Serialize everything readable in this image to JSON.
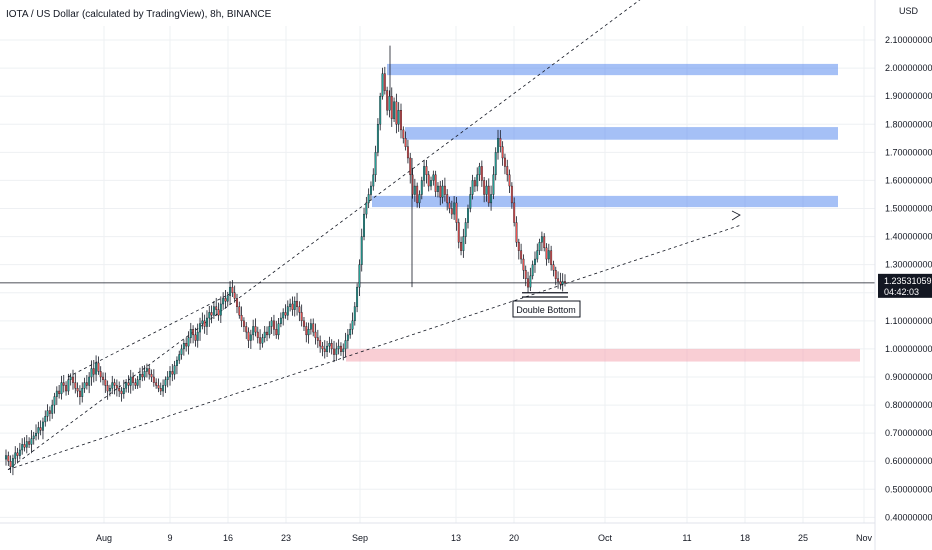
{
  "chart_data": {
    "type": "candlestick",
    "title": "IOTA / US Dollar (calculated by TradingView), 8h, BINANCE",
    "currency": "USD",
    "y_axis": {
      "ticks": [
        "2.10000000",
        "2.00000000",
        "1.90000000",
        "1.80000000",
        "1.70000000",
        "1.60000000",
        "1.50000000",
        "1.40000000",
        "1.30000000",
        "1.20000000",
        "1.10000000",
        "1.00000000",
        "0.90000000",
        "0.80000000",
        "0.70000000",
        "0.60000000",
        "0.50000000",
        "0.40000000"
      ],
      "range": [
        0.38,
        2.15
      ]
    },
    "x_axis": {
      "ticks": [
        "Aug",
        "9",
        "16",
        "23",
        "Sep",
        "13",
        "20",
        "Oct",
        "11",
        "18",
        "25",
        "Nov"
      ]
    },
    "current_price": "1.23531059",
    "countdown": "04:42:03",
    "zones": [
      {
        "name": "resistance-zone-2.0",
        "y_low": 1.975,
        "y_high": 2.015,
        "color": "#5b8def"
      },
      {
        "name": "resistance-zone-1.77",
        "y_low": 1.745,
        "y_high": 1.79,
        "color": "#5b8def"
      },
      {
        "name": "resistance-zone-1.53",
        "y_low": 1.505,
        "y_high": 1.545,
        "color": "#5b8def"
      },
      {
        "name": "support-zone-0.98",
        "y_low": 0.955,
        "y_high": 1.0,
        "color": "#f4a6b0"
      }
    ],
    "annotation": "Double Bottom",
    "colors": {
      "up": "#26a69a",
      "down": "#ef5350",
      "wick": "#131722",
      "zone_blue": "#5b8def",
      "zone_red": "#f4a6b0",
      "price_label_bg": "#131722"
    },
    "candles_note": "8h candles; closes approximated from chart",
    "closes": [
      0.62,
      0.6,
      0.58,
      0.61,
      0.63,
      0.62,
      0.64,
      0.66,
      0.65,
      0.67,
      0.66,
      0.68,
      0.69,
      0.7,
      0.72,
      0.71,
      0.74,
      0.76,
      0.78,
      0.77,
      0.8,
      0.83,
      0.85,
      0.84,
      0.88,
      0.87,
      0.85,
      0.89,
      0.9,
      0.88,
      0.86,
      0.85,
      0.83,
      0.86,
      0.88,
      0.87,
      0.9,
      0.93,
      0.91,
      0.95,
      0.92,
      0.9,
      0.89,
      0.87,
      0.85,
      0.86,
      0.88,
      0.87,
      0.86,
      0.85,
      0.84,
      0.86,
      0.88,
      0.87,
      0.9,
      0.88,
      0.87,
      0.89,
      0.91,
      0.9,
      0.92,
      0.93,
      0.91,
      0.9,
      0.88,
      0.87,
      0.86,
      0.85,
      0.87,
      0.89,
      0.9,
      0.92,
      0.91,
      0.94,
      0.96,
      0.98,
      1.0,
      1.02,
      1.01,
      1.04,
      1.07,
      1.05,
      1.03,
      1.06,
      1.09,
      1.1,
      1.08,
      1.11,
      1.13,
      1.12,
      1.15,
      1.14,
      1.12,
      1.16,
      1.18,
      1.17,
      1.19,
      1.22,
      1.2,
      1.18,
      1.15,
      1.12,
      1.1,
      1.08,
      1.06,
      1.03,
      1.05,
      1.08,
      1.06,
      1.04,
      1.02,
      1.04,
      1.06,
      1.05,
      1.08,
      1.1,
      1.07,
      1.05,
      1.09,
      1.11,
      1.13,
      1.12,
      1.15,
      1.16,
      1.14,
      1.17,
      1.15,
      1.13,
      1.1,
      1.08,
      1.05,
      1.07,
      1.09,
      1.06,
      1.04,
      1.03,
      1.01,
      1.0,
      0.99,
      1.01,
      1.02,
      1.0,
      0.98,
      1.0,
      1.01,
      0.99,
      1.0,
      1.03,
      1.05,
      1.07,
      1.1,
      1.15,
      1.22,
      1.3,
      1.4,
      1.48,
      1.52,
      1.55,
      1.58,
      1.62,
      1.7,
      1.8,
      1.9,
      1.98,
      1.92,
      1.85,
      1.9,
      1.82,
      1.88,
      1.8,
      1.85,
      1.78,
      1.75,
      1.72,
      1.68,
      1.62,
      1.55,
      1.58,
      1.52,
      1.55,
      1.6,
      1.65,
      1.62,
      1.58,
      1.6,
      1.62,
      1.56,
      1.58,
      1.54,
      1.58,
      1.55,
      1.52,
      1.5,
      1.48,
      1.52,
      1.45,
      1.38,
      1.35,
      1.4,
      1.45,
      1.5,
      1.55,
      1.6,
      1.58,
      1.62,
      1.65,
      1.6,
      1.55,
      1.58,
      1.52,
      1.55,
      1.62,
      1.7,
      1.75,
      1.72,
      1.68,
      1.65,
      1.62,
      1.58,
      1.52,
      1.45,
      1.38,
      1.35,
      1.32,
      1.28,
      1.25,
      1.22,
      1.26,
      1.3,
      1.32,
      1.35,
      1.38,
      1.4,
      1.36,
      1.32,
      1.35,
      1.3,
      1.28,
      1.25,
      1.24,
      1.23,
      1.24,
      1.235
    ]
  },
  "trend_lines": [
    {
      "name": "upper-channel-line",
      "from": {
        "date_index": 0,
        "price": 0.58
      },
      "to": {
        "date_index": 200,
        "price": 2.3
      }
    },
    {
      "name": "lower-channel-line",
      "from": {
        "date_index": 0,
        "price": 0.58
      },
      "to": {
        "date_index": 280,
        "price": 1.45
      }
    }
  ]
}
